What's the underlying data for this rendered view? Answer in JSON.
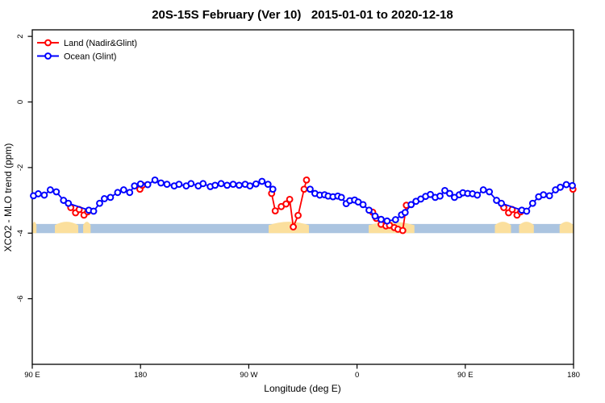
{
  "title": "20S-15S February (Ver 10)   2015-01-01 to 2020-12-18",
  "chart_data": {
    "type": "line",
    "title": "20S-15S February (Ver 10)   2015-01-01 to 2020-12-18",
    "xlabel": "Longitude (deg E)",
    "ylabel": "XCO2 - MLO trend (ppm)",
    "xlim": [
      90,
      540
    ],
    "ylim": [
      -8,
      2.2
    ],
    "grid": false,
    "legend_position": "top-left",
    "x_ticks": [
      {
        "deg": 90,
        "label": "90 E"
      },
      {
        "deg": 180,
        "label": "180"
      },
      {
        "deg": 270,
        "label": "90 W"
      },
      {
        "deg": 360,
        "label": "0"
      },
      {
        "deg": 450,
        "label": "90 E"
      },
      {
        "deg": 540,
        "label": "180"
      }
    ],
    "y_ticks": [
      {
        "val": 2,
        "label": "2"
      },
      {
        "val": 0,
        "label": "0"
      },
      {
        "val": -2,
        "label": "-2"
      },
      {
        "val": -4,
        "label": "-4"
      },
      {
        "val": -6,
        "label": "-6"
      }
    ],
    "legend": [
      {
        "name": "Land (Nadir&Glint)",
        "color": "#FF0000"
      },
      {
        "name": "Ocean (Glint)",
        "color": "#0000FF"
      }
    ],
    "reference_band": {
      "value_from": -3.72,
      "value_to": -4.0,
      "color": "#ABC4E0"
    },
    "land_region_color": "#FBDF9D",
    "land_regions_deg": [
      [
        90,
        93.5
      ],
      [
        108.8,
        128.2
      ],
      [
        132.3,
        138.5
      ],
      [
        286.5,
        320
      ],
      [
        369.7,
        407.7
      ],
      [
        474.6,
        488
      ],
      [
        494.7,
        507
      ],
      [
        528.4,
        540
      ]
    ],
    "series": [
      {
        "name": "Land (Nadir&Glint)",
        "color": "#FF0000",
        "segments": [
          [
            [
              122,
              -3.22
            ],
            [
              126,
              -3.38
            ],
            [
              129,
              -3.28
            ],
            [
              133,
              -3.45
            ],
            [
              136,
              -3.35
            ]
          ],
          [
            [
              179.5,
              -2.66
            ],
            [
              181.5,
              -2.54
            ]
          ],
          [
            [
              289,
              -2.79
            ],
            [
              292,
              -3.32
            ],
            [
              297,
              -3.19
            ],
            [
              301,
              -3.11
            ],
            [
              304,
              -2.97
            ],
            [
              307,
              -3.81
            ],
            [
              311,
              -3.46
            ],
            [
              316,
              -2.66
            ],
            [
              318,
              -2.38
            ]
          ],
          [
            [
              373,
              -3.36
            ],
            [
              376,
              -3.55
            ],
            [
              380,
              -3.73
            ],
            [
              384,
              -3.78
            ],
            [
              387,
              -3.76
            ],
            [
              391,
              -3.83
            ],
            [
              394,
              -3.88
            ],
            [
              398,
              -3.92
            ],
            [
              401,
              -3.15
            ]
          ],
          [
            [
              482,
              -3.22
            ],
            [
              486,
              -3.38
            ],
            [
              489,
              -3.28
            ],
            [
              493,
              -3.45
            ],
            [
              496,
              -3.35
            ]
          ],
          [
            [
              539.5,
              -2.66
            ]
          ]
        ]
      },
      {
        "name": "Ocean (Glint)",
        "color": "#0000FF",
        "segments": [
          [
            [
              91,
              -2.86
            ],
            [
              95,
              -2.8
            ],
            [
              100,
              -2.84
            ],
            [
              105,
              -2.68
            ],
            [
              110,
              -2.74
            ],
            [
              116,
              -3.0
            ],
            [
              120,
              -3.09
            ],
            [
              137,
              -3.3
            ],
            [
              141,
              -3.33
            ],
            [
              146,
              -3.09
            ],
            [
              150,
              -2.95
            ],
            [
              155,
              -2.91
            ],
            [
              161,
              -2.76
            ],
            [
              166,
              -2.68
            ],
            [
              171,
              -2.76
            ],
            [
              175,
              -2.56
            ],
            [
              180,
              -2.5
            ],
            [
              186,
              -2.52
            ],
            [
              192,
              -2.38
            ],
            [
              197,
              -2.47
            ],
            [
              202,
              -2.51
            ],
            [
              208,
              -2.56
            ],
            [
              212,
              -2.51
            ],
            [
              218,
              -2.56
            ],
            [
              222,
              -2.49
            ],
            [
              228,
              -2.56
            ],
            [
              232,
              -2.49
            ],
            [
              238,
              -2.58
            ],
            [
              242,
              -2.54
            ],
            [
              247,
              -2.49
            ],
            [
              252,
              -2.54
            ],
            [
              257,
              -2.51
            ],
            [
              262,
              -2.54
            ],
            [
              267,
              -2.51
            ],
            [
              271,
              -2.56
            ],
            [
              276,
              -2.5
            ],
            [
              281,
              -2.42
            ],
            [
              286,
              -2.51
            ],
            [
              290,
              -2.66
            ]
          ],
          [
            [
              321,
              -2.66
            ],
            [
              325,
              -2.79
            ],
            [
              329,
              -2.84
            ],
            [
              333,
              -2.83
            ],
            [
              336,
              -2.87
            ],
            [
              340,
              -2.89
            ],
            [
              344,
              -2.87
            ],
            [
              347,
              -2.91
            ],
            [
              351,
              -3.1
            ],
            [
              354,
              -3.01
            ],
            [
              358,
              -2.99
            ],
            [
              361,
              -3.05
            ],
            [
              365,
              -3.13
            ],
            [
              370,
              -3.3
            ],
            [
              375,
              -3.48
            ],
            [
              380,
              -3.58
            ],
            [
              385,
              -3.63
            ],
            [
              392,
              -3.59
            ],
            [
              397,
              -3.44
            ],
            [
              400,
              -3.37
            ],
            [
              405,
              -3.13
            ],
            [
              409,
              -3.03
            ],
            [
              413,
              -2.96
            ],
            [
              417,
              -2.88
            ],
            [
              421,
              -2.82
            ],
            [
              425,
              -2.91
            ],
            [
              429,
              -2.87
            ],
            [
              433,
              -2.7
            ],
            [
              437,
              -2.79
            ],
            [
              441,
              -2.91
            ],
            [
              445,
              -2.83
            ],
            [
              448,
              -2.77
            ],
            [
              452,
              -2.79
            ],
            [
              456,
              -2.8
            ],
            [
              460,
              -2.84
            ],
            [
              465,
              -2.68
            ],
            [
              470,
              -2.74
            ],
            [
              476,
              -3.0
            ],
            [
              480,
              -3.09
            ],
            [
              497,
              -3.3
            ],
            [
              501,
              -3.33
            ],
            [
              506,
              -3.09
            ],
            [
              511,
              -2.89
            ],
            [
              515,
              -2.83
            ],
            [
              520,
              -2.86
            ],
            [
              525,
              -2.68
            ],
            [
              529,
              -2.6
            ],
            [
              534,
              -2.52
            ],
            [
              539,
              -2.55
            ]
          ]
        ]
      }
    ]
  }
}
